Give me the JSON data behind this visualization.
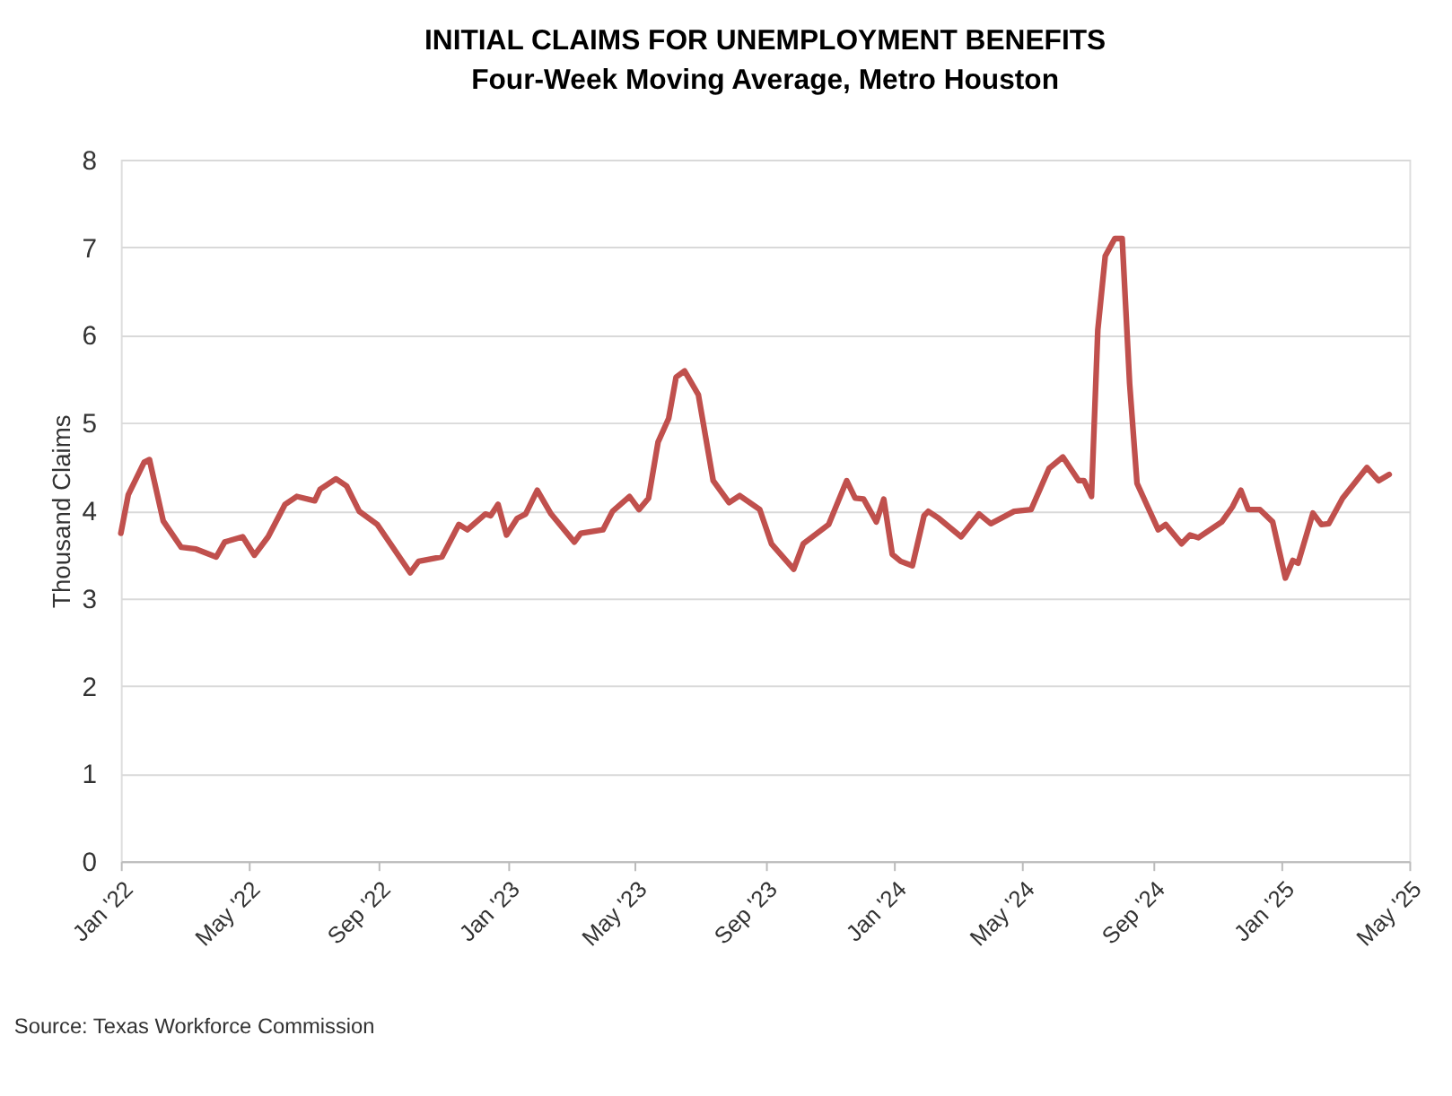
{
  "chart_data": {
    "type": "line",
    "title": "INITIAL CLAIMS FOR UNEMPLOYMENT BENEFITS",
    "subtitle": "Four-Week Moving Average, Metro Houston",
    "ylabel": "Thousand Claims",
    "annotations": [
      "Source: Texas Workforce Commission"
    ],
    "x": [
      "2022-01-01",
      "2022-01-08",
      "2022-01-23",
      "2022-01-28",
      "2022-02-10",
      "2022-02-27",
      "2022-03-13",
      "2022-04-01",
      "2022-04-09",
      "2022-04-26",
      "2022-05-07",
      "2022-05-20",
      "2022-06-05",
      "2022-06-16",
      "2022-07-03",
      "2022-07-08",
      "2022-07-23",
      "2022-08-02",
      "2022-08-14",
      "2022-08-31",
      "2022-10-01",
      "2022-10-09",
      "2022-10-31",
      "2022-11-16",
      "2022-11-24",
      "2022-12-11",
      "2022-12-16",
      "2022-12-23",
      "2022-12-31",
      "2023-01-10",
      "2023-01-18",
      "2023-01-29",
      "2023-02-11",
      "2023-03-05",
      "2023-03-11",
      "2023-04-01",
      "2023-04-10",
      "2023-04-26",
      "2023-05-05",
      "2023-05-14",
      "2023-05-23",
      "2023-06-02",
      "2023-06-09",
      "2023-06-17",
      "2023-06-30",
      "2023-07-14",
      "2023-07-29",
      "2023-08-08",
      "2023-08-27",
      "2023-09-07",
      "2023-09-28",
      "2023-10-07",
      "2023-10-31",
      "2023-11-17",
      "2023-11-25",
      "2023-12-03",
      "2023-12-15",
      "2023-12-22",
      "2023-12-30",
      "2024-01-07",
      "2024-01-18",
      "2024-01-29",
      "2024-02-02",
      "2024-02-12",
      "2024-03-04",
      "2024-03-21",
      "2024-04-01",
      "2024-04-23",
      "2024-05-09",
      "2024-05-26",
      "2024-06-08",
      "2024-06-23",
      "2024-06-28",
      "2024-07-05",
      "2024-07-11",
      "2024-07-18",
      "2024-07-27",
      "2024-08-03",
      "2024-08-10",
      "2024-08-17",
      "2024-08-26",
      "2024-09-06",
      "2024-09-13",
      "2024-09-28",
      "2024-10-06",
      "2024-10-14",
      "2024-11-05",
      "2024-11-15",
      "2024-11-23",
      "2024-11-30",
      "2024-12-11",
      "2024-12-23",
      "2025-01-04",
      "2025-01-11",
      "2025-01-16",
      "2025-01-30",
      "2025-02-07",
      "2025-02-14",
      "2025-02-27",
      "2025-03-22",
      "2025-04-02",
      "2025-04-12"
    ],
    "series": [
      {
        "color": "#c0504d",
        "values": [
          3.74,
          4.18,
          4.55,
          4.58,
          3.88,
          3.58,
          3.56,
          3.47,
          3.64,
          3.7,
          3.49,
          3.7,
          4.07,
          4.16,
          4.11,
          4.24,
          4.36,
          4.28,
          3.99,
          3.84,
          3.29,
          3.42,
          3.47,
          3.84,
          3.78,
          3.96,
          3.94,
          4.07,
          3.72,
          3.91,
          3.96,
          4.23,
          3.96,
          3.64,
          3.74,
          3.78,
          3.99,
          4.16,
          4.01,
          4.14,
          4.78,
          5.05,
          5.52,
          5.59,
          5.32,
          4.34,
          4.09,
          4.17,
          4.01,
          3.62,
          3.33,
          3.62,
          3.84,
          4.34,
          4.14,
          4.13,
          3.87,
          4.13,
          3.5,
          3.42,
          3.37,
          3.94,
          3.99,
          3.91,
          3.7,
          3.96,
          3.85,
          3.99,
          4.01,
          4.48,
          4.61,
          4.34,
          4.34,
          4.16,
          6.06,
          6.9,
          7.1,
          7.1,
          5.45,
          4.31,
          4.07,
          3.78,
          3.84,
          3.62,
          3.72,
          3.69,
          3.87,
          4.04,
          4.23,
          4.01,
          4.01,
          3.87,
          3.23,
          3.43,
          3.4,
          3.97,
          3.84,
          3.85,
          4.14,
          4.49,
          4.34,
          4.41
        ]
      }
    ],
    "xlim": [
      "2022-01-01",
      "2025-05-01"
    ],
    "xticks": [
      {
        "value": "2022-01-01",
        "label": "Jan '22"
      },
      {
        "value": "2022-05-01",
        "label": "May '22"
      },
      {
        "value": "2022-09-01",
        "label": "Sep '22"
      },
      {
        "value": "2023-01-01",
        "label": "Jan '23"
      },
      {
        "value": "2023-05-01",
        "label": "May '23"
      },
      {
        "value": "2023-09-01",
        "label": "Sep '23"
      },
      {
        "value": "2024-01-01",
        "label": "Jan '24"
      },
      {
        "value": "2024-05-01",
        "label": "May '24"
      },
      {
        "value": "2024-09-01",
        "label": "Sep '24"
      },
      {
        "value": "2025-01-01",
        "label": "Jan '25"
      },
      {
        "value": "2025-05-01",
        "label": "May '25"
      }
    ],
    "ylim": [
      0,
      8
    ],
    "yticks": [
      0,
      1,
      2,
      3,
      4,
      5,
      6,
      7,
      8
    ],
    "grid": "y",
    "line_style": "solid",
    "marker": "none"
  }
}
